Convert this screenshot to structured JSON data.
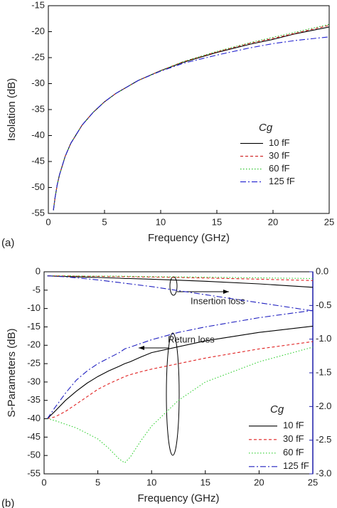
{
  "chart_data": [
    {
      "type": "line",
      "panel_label": "(a)",
      "x_label": "Frequency (GHz)",
      "y_label": "Isolation (dB)",
      "legend_title": "Cg",
      "xlim": [
        0,
        25
      ],
      "xticks": [
        0,
        5,
        10,
        15,
        20,
        25
      ],
      "ylim": [
        -55,
        -15
      ],
      "yticks": [
        -55,
        -50,
        -45,
        -40,
        -35,
        -30,
        -25,
        -20,
        -15
      ],
      "x": [
        0.45,
        0.6,
        0.8,
        1,
        1.5,
        2,
        3,
        4,
        5,
        6,
        8,
        10,
        12,
        15,
        18,
        20,
        22,
        25
      ],
      "series": [
        {
          "name": "10 fF",
          "color": "#000000",
          "linestyle": "solid",
          "values": [
            -54.4,
            -51.9,
            -49.4,
            -47.5,
            -44.0,
            -41.5,
            -38.0,
            -35.5,
            -33.5,
            -31.9,
            -29.4,
            -27.5,
            -25.9,
            -24.0,
            -22.4,
            -21.5,
            -20.4,
            -19.1
          ]
        },
        {
          "name": "30 fF",
          "color": "#d02020",
          "linestyle": "dashed",
          "values": [
            -54.4,
            -51.9,
            -49.4,
            -47.5,
            -44.0,
            -41.5,
            -38.0,
            -35.5,
            -33.5,
            -31.9,
            -29.4,
            -27.5,
            -25.8,
            -23.9,
            -22.2,
            -21.3,
            -20.3,
            -18.8
          ]
        },
        {
          "name": "60 fF",
          "color": "#20c020",
          "linestyle": "dotted",
          "values": [
            -54.4,
            -51.9,
            -49.4,
            -47.5,
            -44.0,
            -41.5,
            -38.0,
            -35.5,
            -33.5,
            -31.9,
            -29.4,
            -27.5,
            -25.8,
            -23.8,
            -22.1,
            -21.1,
            -20.1,
            -18.6
          ]
        },
        {
          "name": "125 fF",
          "color": "#2020d0",
          "linestyle": "dashdot",
          "values": [
            -54.4,
            -51.9,
            -49.4,
            -47.5,
            -44.0,
            -41.5,
            -38.0,
            -35.5,
            -33.5,
            -31.9,
            -29.4,
            -27.6,
            -26.1,
            -24.5,
            -23.1,
            -22.3,
            -21.7,
            -21.0
          ]
        }
      ]
    },
    {
      "type": "line",
      "panel_label": "(b)",
      "x_label": "Frequency (GHz)",
      "y_label": "S-Parameters (dB)",
      "legend_title": "Cg",
      "annotations": [
        "Insertion loss",
        "Return loss"
      ],
      "xlim": [
        0,
        25
      ],
      "xticks": [
        0,
        5,
        10,
        15,
        20,
        25
      ],
      "ylim": [
        -55,
        0
      ],
      "yticks": [
        -55,
        -50,
        -45,
        -40,
        -35,
        -30,
        -25,
        -20,
        -15,
        -10,
        -5,
        0
      ],
      "y2lim": [
        -3,
        0
      ],
      "y2color": "#1c1ca8",
      "y2ticks": [
        {
          "value": -3,
          "label": "-3.0"
        },
        -2.5,
        {
          "value": -2,
          "label": "-2.0"
        },
        -1.5,
        {
          "value": -1,
          "label": "-1.0"
        },
        -0.5,
        {
          "value": 0,
          "label": "0.0"
        }
      ],
      "x": [
        0.3,
        1,
        2,
        3,
        4,
        5,
        6,
        7,
        7.5,
        8,
        9,
        10,
        12.5,
        15,
        20,
        25
      ],
      "series": [
        {
          "name": "10 fF",
          "color": "#000000",
          "linestyle": "solid",
          "values": [
            -40,
            -38,
            -35,
            -32.5,
            -30.3,
            -28.5,
            -27,
            -25.7,
            -25,
            -24.5,
            -23.2,
            -22,
            -20.4,
            -18.8,
            -16.5,
            -14.8
          ]
        },
        {
          "name": "30 fF",
          "color": "#e02020",
          "linestyle": "dashed",
          "values": [
            -40,
            -39.5,
            -38,
            -36,
            -34,
            -32,
            -30.5,
            -29.2,
            -28.5,
            -28,
            -27.2,
            -26.5,
            -25,
            -23.5,
            -21,
            -19
          ]
        },
        {
          "name": "60 fF",
          "color": "#30d030",
          "linestyle": "dotted",
          "values": [
            -40,
            -40.5,
            -41.5,
            -42.5,
            -44,
            -45.5,
            -48,
            -51,
            -52,
            -50.5,
            -46,
            -42,
            -35,
            -30,
            -24.5,
            -20.5
          ]
        },
        {
          "name": "125 fF",
          "color": "#2020c0",
          "linestyle": "dashdot",
          "values": [
            -40,
            -37,
            -33,
            -29.5,
            -27,
            -25,
            -23.5,
            -22,
            -21,
            -20.5,
            -19.5,
            -18.5,
            -16.5,
            -15,
            -12.5,
            -10.5
          ]
        },
        {
          "axis": "y2",
          "color": "#000000",
          "linestyle": "solid",
          "values": [
            -0.06,
            -0.065,
            -0.07,
            -0.075,
            -0.08,
            -0.085,
            -0.09,
            -0.095,
            -0.1,
            -0.1,
            -0.105,
            -0.11,
            -0.125,
            -0.14,
            -0.18,
            -0.23
          ]
        },
        {
          "axis": "y2",
          "color": "#e02020",
          "linestyle": "dashed",
          "values": [
            -0.06,
            -0.06,
            -0.062,
            -0.064,
            -0.066,
            -0.068,
            -0.07,
            -0.072,
            -0.073,
            -0.074,
            -0.076,
            -0.078,
            -0.085,
            -0.092,
            -0.11,
            -0.13
          ]
        },
        {
          "axis": "y2",
          "color": "#30d030",
          "linestyle": "dotted",
          "values": [
            -0.06,
            -0.06,
            -0.061,
            -0.062,
            -0.063,
            -0.064,
            -0.065,
            -0.066,
            -0.067,
            -0.068,
            -0.07,
            -0.072,
            -0.076,
            -0.08,
            -0.09,
            -0.1
          ]
        },
        {
          "axis": "y2",
          "color": "#2020c0",
          "linestyle": "dashdot",
          "values": [
            -0.06,
            -0.065,
            -0.075,
            -0.09,
            -0.105,
            -0.12,
            -0.14,
            -0.16,
            -0.17,
            -0.18,
            -0.2,
            -0.22,
            -0.28,
            -0.34,
            -0.46,
            -0.58
          ]
        }
      ]
    }
  ]
}
